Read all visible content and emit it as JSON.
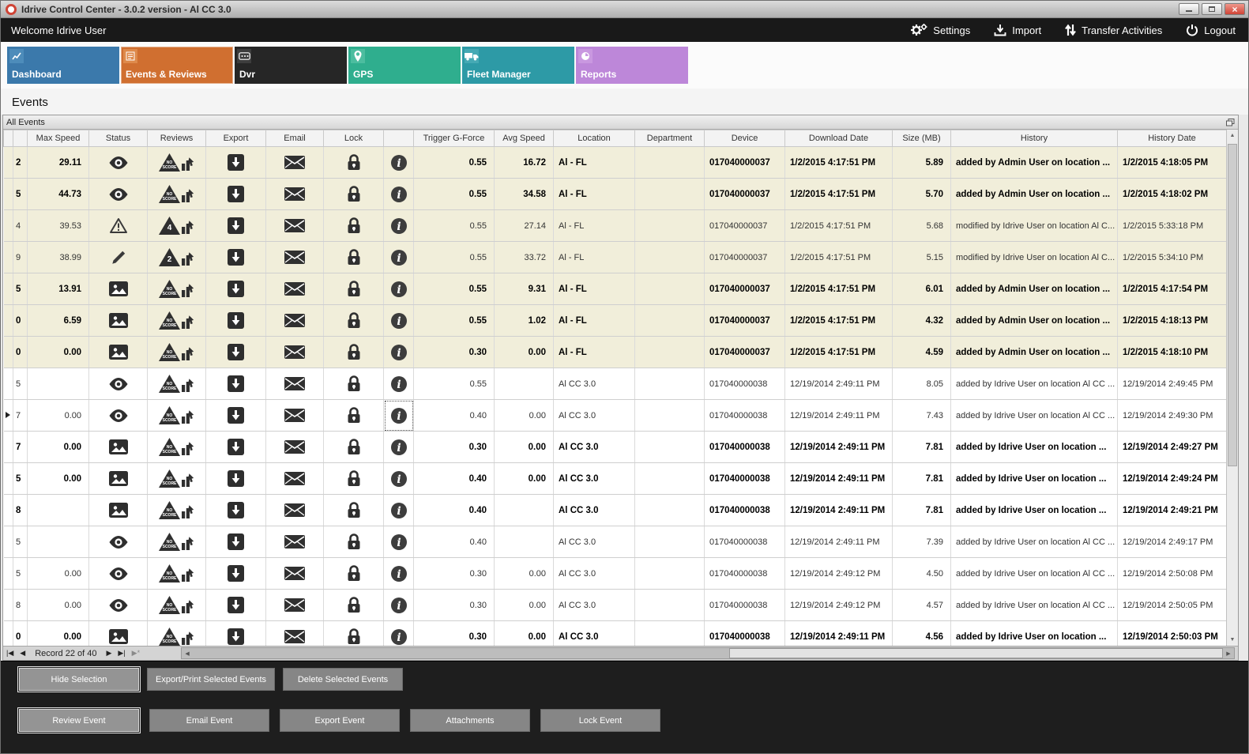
{
  "window": {
    "title": "Idrive Control Center - 3.0.2 version - Al CC 3.0"
  },
  "menubar": {
    "welcome": "Welcome Idrive User",
    "actions": [
      {
        "label": "Settings",
        "icon": "gears-icon"
      },
      {
        "label": "Import",
        "icon": "import-icon"
      },
      {
        "label": "Transfer Activities",
        "icon": "transfer-icon"
      },
      {
        "label": "Logout",
        "icon": "power-icon"
      }
    ]
  },
  "tabs": [
    {
      "label": "Dashboard",
      "color": "#3b79ab",
      "icon_bg": "#4d8cba",
      "icon": "line-chart-icon",
      "active": false
    },
    {
      "label": "Events & Reviews",
      "color": "#d06f30",
      "icon_bg": "#de8a4b",
      "icon": "checklist-icon",
      "active": true
    },
    {
      "label": "Dvr",
      "color": "#262626",
      "icon_bg": "#3d3d3d",
      "icon": "dvr-icon",
      "active": false
    },
    {
      "label": "GPS",
      "color": "#2fae8e",
      "icon_bg": "#4cbd9f",
      "icon": "map-pin-icon",
      "active": false
    },
    {
      "label": "Fleet Manager",
      "color": "#2d9aa6",
      "icon_bg": "#45a9b4",
      "icon": "truck-icon",
      "active": false
    },
    {
      "label": "Reports",
      "color": "#bd87d9",
      "icon_bg": "#c998e0",
      "icon": "pie-icon",
      "active": false
    }
  ],
  "page": {
    "section_title": "Events",
    "panel_title": "All Events"
  },
  "icons": {
    "no_score_line1": "NO",
    "no_score_line2": "SCORE"
  },
  "grid": {
    "row_highlight_color": "#f1eeda",
    "columns": [
      "Max Speed",
      "Status",
      "Reviews",
      "Export",
      "Email",
      "Lock",
      "",
      "Trigger G-Force",
      "Avg Speed",
      "Location",
      "Department",
      "Device",
      "Download Date",
      "Size (MB)",
      "History",
      "History Date"
    ],
    "rows": [
      {
        "id": "2",
        "max": "29.11",
        "status": "eye",
        "review": "noscore",
        "trigger": "0.55",
        "avg": "16.72",
        "loc": "Al - FL",
        "dept": "",
        "device": "017040000037",
        "dl": "1/2/2015 4:17:51 PM",
        "size": "5.89",
        "hist": "added by Admin User on location ...",
        "hdate": "1/2/2015 4:18:05 PM",
        "bold": true,
        "beige": true,
        "sel": false
      },
      {
        "id": "5",
        "max": "44.73",
        "status": "eye",
        "review": "noscore",
        "trigger": "0.55",
        "avg": "34.58",
        "loc": "Al - FL",
        "dept": "",
        "device": "017040000037",
        "dl": "1/2/2015 4:17:51 PM",
        "size": "5.70",
        "hist": "added by Admin User on location ...",
        "hdate": "1/2/2015 4:18:02 PM",
        "bold": true,
        "beige": true,
        "sel": false
      },
      {
        "id": "4",
        "max": "39.53",
        "status": "warning",
        "review": "4",
        "trigger": "0.55",
        "avg": "27.14",
        "loc": "Al - FL",
        "dept": "",
        "device": "017040000037",
        "dl": "1/2/2015 4:17:51 PM",
        "size": "5.68",
        "hist": "modified by Idrive User on location Al C...",
        "hdate": "1/2/2015 5:33:18 PM",
        "bold": false,
        "beige": true,
        "sel": false
      },
      {
        "id": "9",
        "max": "38.99",
        "status": "pencil",
        "review": "2",
        "trigger": "0.55",
        "avg": "33.72",
        "loc": "Al - FL",
        "dept": "",
        "device": "017040000037",
        "dl": "1/2/2015 4:17:51 PM",
        "size": "5.15",
        "hist": "modified by Idrive User on location Al C...",
        "hdate": "1/2/2015 5:34:10 PM",
        "bold": false,
        "beige": true,
        "sel": false
      },
      {
        "id": "5",
        "max": "13.91",
        "status": "picture",
        "review": "noscore",
        "trigger": "0.55",
        "avg": "9.31",
        "loc": "Al - FL",
        "dept": "",
        "device": "017040000037",
        "dl": "1/2/2015 4:17:51 PM",
        "size": "6.01",
        "hist": "added by Admin User on location ...",
        "hdate": "1/2/2015 4:17:54 PM",
        "bold": true,
        "beige": true,
        "sel": false
      },
      {
        "id": "0",
        "max": "6.59",
        "status": "picture",
        "review": "noscore",
        "trigger": "0.55",
        "avg": "1.02",
        "loc": "Al - FL",
        "dept": "",
        "device": "017040000037",
        "dl": "1/2/2015 4:17:51 PM",
        "size": "4.32",
        "hist": "added by Admin User on location ...",
        "hdate": "1/2/2015 4:18:13 PM",
        "bold": true,
        "beige": true,
        "sel": false
      },
      {
        "id": "0",
        "max": "0.00",
        "status": "picture",
        "review": "noscore",
        "trigger": "0.30",
        "avg": "0.00",
        "loc": "Al - FL",
        "dept": "",
        "device": "017040000037",
        "dl": "1/2/2015 4:17:51 PM",
        "size": "4.59",
        "hist": "added by Admin User on location ...",
        "hdate": "1/2/2015 4:18:10 PM",
        "bold": true,
        "beige": true,
        "sel": false
      },
      {
        "id": "5",
        "max": "",
        "status": "eye",
        "review": "noscore",
        "trigger": "0.55",
        "avg": "",
        "loc": "Al CC 3.0",
        "dept": "",
        "device": "017040000038",
        "dl": "12/19/2014 2:49:11 PM",
        "size": "8.05",
        "hist": "added by Idrive User on location Al CC ...",
        "hdate": "12/19/2014 2:49:45 PM",
        "bold": false,
        "beige": false,
        "sel": false
      },
      {
        "id": "7",
        "max": "0.00",
        "status": "eye",
        "review": "noscore",
        "trigger": "0.40",
        "avg": "0.00",
        "loc": "Al CC 3.0",
        "dept": "",
        "device": "017040000038",
        "dl": "12/19/2014 2:49:11 PM",
        "size": "7.43",
        "hist": "added by Idrive User on location Al CC ...",
        "hdate": "12/19/2014 2:49:30 PM",
        "bold": false,
        "beige": false,
        "sel": true
      },
      {
        "id": "7",
        "max": "0.00",
        "status": "picture",
        "review": "noscore",
        "trigger": "0.30",
        "avg": "0.00",
        "loc": "Al CC 3.0",
        "dept": "",
        "device": "017040000038",
        "dl": "12/19/2014 2:49:11 PM",
        "size": "7.81",
        "hist": "added by Idrive User on location ...",
        "hdate": "12/19/2014 2:49:27 PM",
        "bold": true,
        "beige": false,
        "sel": false
      },
      {
        "id": "5",
        "max": "0.00",
        "status": "picture",
        "review": "noscore",
        "trigger": "0.40",
        "avg": "0.00",
        "loc": "Al CC 3.0",
        "dept": "",
        "device": "017040000038",
        "dl": "12/19/2014 2:49:11 PM",
        "size": "7.81",
        "hist": "added by Idrive User on location ...",
        "hdate": "12/19/2014 2:49:24 PM",
        "bold": true,
        "beige": false,
        "sel": false
      },
      {
        "id": "8",
        "max": "",
        "status": "picture",
        "review": "noscore",
        "trigger": "0.40",
        "avg": "",
        "loc": "Al CC 3.0",
        "dept": "",
        "device": "017040000038",
        "dl": "12/19/2014 2:49:11 PM",
        "size": "7.81",
        "hist": "added by Idrive User on location ...",
        "hdate": "12/19/2014 2:49:21 PM",
        "bold": true,
        "beige": false,
        "sel": false
      },
      {
        "id": "5",
        "max": "",
        "status": "eye",
        "review": "noscore",
        "trigger": "0.40",
        "avg": "",
        "loc": "Al CC 3.0",
        "dept": "",
        "device": "017040000038",
        "dl": "12/19/2014 2:49:11 PM",
        "size": "7.39",
        "hist": "added by Idrive User on location Al CC ...",
        "hdate": "12/19/2014 2:49:17 PM",
        "bold": false,
        "beige": false,
        "sel": false
      },
      {
        "id": "5",
        "max": "0.00",
        "status": "eye",
        "review": "noscore",
        "trigger": "0.30",
        "avg": "0.00",
        "loc": "Al CC 3.0",
        "dept": "",
        "device": "017040000038",
        "dl": "12/19/2014 2:49:12 PM",
        "size": "4.50",
        "hist": "added by Idrive User on location Al CC ...",
        "hdate": "12/19/2014 2:50:08 PM",
        "bold": false,
        "beige": false,
        "sel": false
      },
      {
        "id": "8",
        "max": "0.00",
        "status": "eye",
        "review": "noscore",
        "trigger": "0.30",
        "avg": "0.00",
        "loc": "Al CC 3.0",
        "dept": "",
        "device": "017040000038",
        "dl": "12/19/2014 2:49:12 PM",
        "size": "4.57",
        "hist": "added by Idrive User on location Al CC ...",
        "hdate": "12/19/2014 2:50:05 PM",
        "bold": false,
        "beige": false,
        "sel": false
      },
      {
        "id": "0",
        "max": "0.00",
        "status": "picture",
        "review": "noscore",
        "trigger": "0.30",
        "avg": "0.00",
        "loc": "Al CC 3.0",
        "dept": "",
        "device": "017040000038",
        "dl": "12/19/2014 2:49:11 PM",
        "size": "4.56",
        "hist": "added by Idrive User on location ...",
        "hdate": "12/19/2014 2:50:03 PM",
        "bold": true,
        "beige": false,
        "sel": false
      }
    ]
  },
  "pager": {
    "record_text": "Record 22 of 40"
  },
  "footer": {
    "row1": [
      "Hide Selection",
      "Export/Print Selected Events",
      "Delete Selected  Events"
    ],
    "row2": [
      "Review Event",
      "Email Event",
      "Export Event",
      "Attachments",
      "Lock Event"
    ]
  }
}
